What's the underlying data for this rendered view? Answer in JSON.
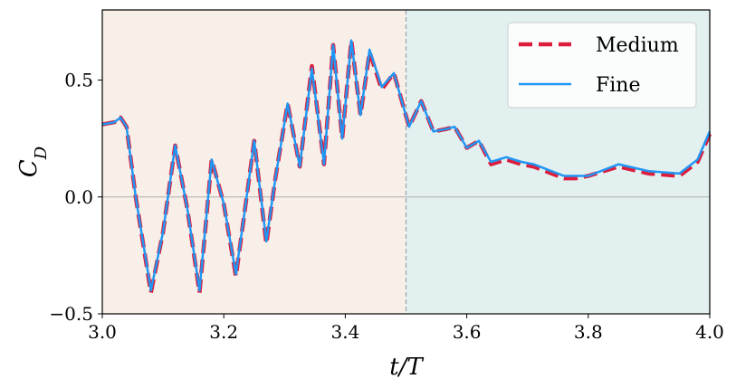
{
  "chart_data": {
    "type": "line",
    "title": "",
    "xlabel": "t/T",
    "ylabel": "C_D",
    "xlim": [
      3.0,
      4.0
    ],
    "ylim": [
      -0.5,
      0.8
    ],
    "xticks": [
      3.0,
      3.2,
      3.4,
      3.6,
      3.8,
      4.0
    ],
    "xtick_labels": [
      "3.0",
      "3.2",
      "3.4",
      "3.6",
      "3.8",
      "4.0"
    ],
    "yticks": [
      -0.5,
      0.0,
      0.5
    ],
    "ytick_labels": [
      "−0.5",
      "0.0",
      "0.5"
    ],
    "grid": false,
    "legend_position": "top-right",
    "reference_lines": [
      {
        "orientation": "horizontal",
        "value": 0.0,
        "color": "#bbbbbb",
        "style": "solid"
      },
      {
        "orientation": "vertical",
        "value": 3.5,
        "color": "#9aa4ad",
        "style": "dashed"
      }
    ],
    "shaded_regions": [
      {
        "x_range": [
          3.0,
          3.5
        ],
        "color": "#f8efe8"
      },
      {
        "x_range": [
          3.5,
          4.0
        ],
        "color": "#e2f0f0"
      }
    ],
    "series": [
      {
        "name": "Medium",
        "color": "#dc1e3c",
        "dash": "dashed",
        "x": [
          3.0,
          3.02,
          3.03,
          3.04,
          3.055,
          3.08,
          3.1,
          3.12,
          3.14,
          3.16,
          3.18,
          3.2,
          3.22,
          3.235,
          3.25,
          3.27,
          3.285,
          3.305,
          3.325,
          3.345,
          3.365,
          3.38,
          3.395,
          3.41,
          3.425,
          3.44,
          3.46,
          3.48,
          3.505,
          3.525,
          3.545,
          3.565,
          3.58,
          3.6,
          3.62,
          3.64,
          3.665,
          3.69,
          3.71,
          3.74,
          3.76,
          3.78,
          3.8,
          3.85,
          3.9,
          3.95,
          3.98,
          4.0
        ],
        "y": [
          0.31,
          0.32,
          0.34,
          0.3,
          0.0,
          -0.41,
          -0.15,
          0.22,
          -0.05,
          -0.41,
          0.16,
          -0.03,
          -0.34,
          -0.05,
          0.24,
          -0.2,
          0.08,
          0.4,
          0.13,
          0.56,
          0.14,
          0.65,
          0.25,
          0.67,
          0.35,
          0.62,
          0.46,
          0.53,
          0.3,
          0.41,
          0.28,
          0.29,
          0.3,
          0.21,
          0.24,
          0.14,
          0.16,
          0.14,
          0.13,
          0.1,
          0.08,
          0.08,
          0.09,
          0.13,
          0.1,
          0.09,
          0.15,
          0.27
        ]
      },
      {
        "name": "Fine",
        "color": "#2196f3",
        "dash": "solid",
        "x": [
          3.0,
          3.02,
          3.03,
          3.04,
          3.055,
          3.08,
          3.1,
          3.12,
          3.14,
          3.16,
          3.18,
          3.2,
          3.22,
          3.235,
          3.25,
          3.27,
          3.285,
          3.305,
          3.325,
          3.345,
          3.365,
          3.38,
          3.395,
          3.41,
          3.425,
          3.44,
          3.46,
          3.48,
          3.505,
          3.525,
          3.545,
          3.565,
          3.58,
          3.6,
          3.62,
          3.64,
          3.665,
          3.69,
          3.71,
          3.74,
          3.76,
          3.78,
          3.8,
          3.85,
          3.9,
          3.95,
          3.98,
          4.0
        ],
        "y": [
          0.31,
          0.32,
          0.34,
          0.3,
          0.0,
          -0.4,
          -0.15,
          0.22,
          -0.05,
          -0.4,
          0.16,
          -0.03,
          -0.33,
          -0.05,
          0.24,
          -0.19,
          0.08,
          0.4,
          0.13,
          0.55,
          0.14,
          0.65,
          0.25,
          0.67,
          0.35,
          0.63,
          0.47,
          0.53,
          0.3,
          0.41,
          0.28,
          0.29,
          0.3,
          0.21,
          0.24,
          0.15,
          0.17,
          0.15,
          0.14,
          0.11,
          0.09,
          0.09,
          0.09,
          0.14,
          0.11,
          0.1,
          0.16,
          0.28
        ]
      }
    ]
  }
}
